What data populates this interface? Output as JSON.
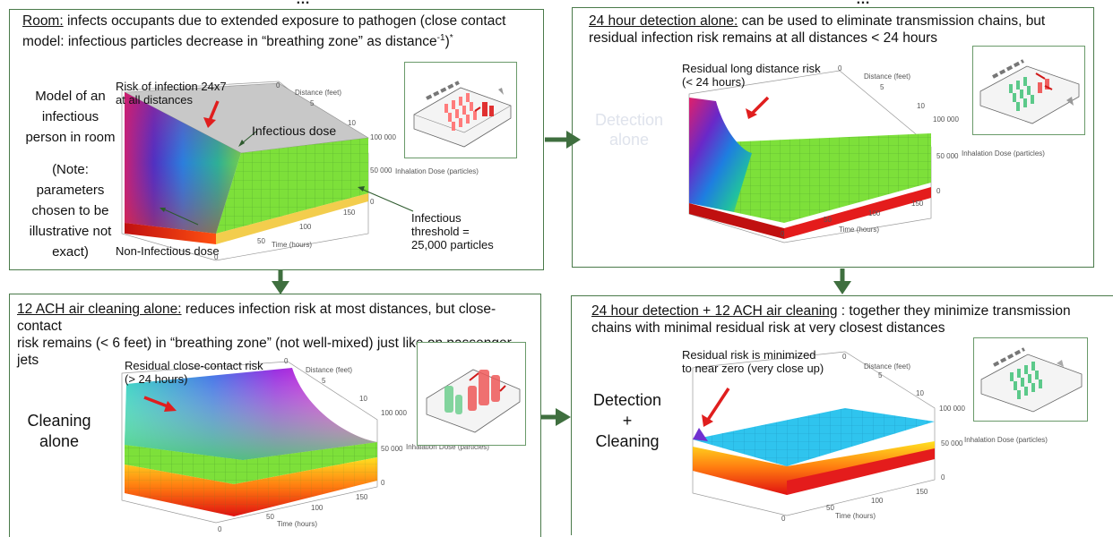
{
  "top_fragments": [
    "…",
    "…"
  ],
  "panels": {
    "room": {
      "caption_label": "Room:",
      "caption_text": " infects occupants due to extended exposure to pathogen (close contact model: infectious particles decrease in “breathing zone” as distance",
      "caption_sup": "-1",
      "caption_tail": ")",
      "caption_star": "*",
      "side_text": [
        "Model of an",
        "infectious",
        "person in room",
        "",
        "(Note:",
        "parameters",
        "chosen to be",
        "illustrative not",
        "exact)"
      ],
      "label_risk": [
        "Risk of infection 24x7",
        "at all distances"
      ],
      "label_infectious_dose": "Infectious dose",
      "label_noninfectious": "Non-Infectious dose",
      "label_threshold": [
        "Infectious",
        "threshold =",
        "25,000 particles"
      ]
    },
    "detection": {
      "caption_label": "24 hour detection alone:",
      "caption_text1": " can be used to eliminate transmission chains, but",
      "caption_text2": "residual infection risk remains at all distances < 24 hours",
      "label_residual": [
        "Residual long distance risk",
        "(< 24 hours)"
      ],
      "ghost_text": [
        "Detection",
        "alone"
      ]
    },
    "cleaning": {
      "caption_label": "12 ACH air cleaning alone:",
      "caption_text1": " reduces infection risk at most distances, but close-contact",
      "caption_text2": "risk remains (< 6 feet) in “breathing zone” (not well-mixed) just like on passenger jets",
      "side_text": [
        "Cleaning",
        "alone"
      ],
      "label_residual": [
        "Residual close-contact risk",
        "(> 24 hours)"
      ]
    },
    "combined": {
      "caption_label": "24 hour detection + 12 ACH air cleaning",
      "caption_text1": " : together they minimize transmission",
      "caption_text2": "chains with minimal residual risk at very closest distances",
      "side_text": [
        "Detection",
        "+",
        "Cleaning"
      ],
      "label_residual": [
        "Residual risk is minimized",
        "to near zero (very close up)"
      ]
    }
  },
  "axes": {
    "distance_label": "Distance (feet)",
    "distance_ticks": [
      "0",
      "5",
      "10"
    ],
    "dose_label": "Inhalation Dose (particles)",
    "dose_ticks": [
      "100 000",
      "50 000",
      "0"
    ],
    "time_label": "Time (hours)",
    "time_ticks": [
      "0",
      "50",
      "100",
      "150"
    ]
  },
  "colors": {
    "panel_border": "#4a7a4a",
    "arrow_green": "#3f6f3f",
    "red_arrow": "#e01e1e",
    "green_surface": "#7de03a",
    "blue_surface": "#2fc4ee",
    "gray_plane": "#c8c8c8"
  }
}
